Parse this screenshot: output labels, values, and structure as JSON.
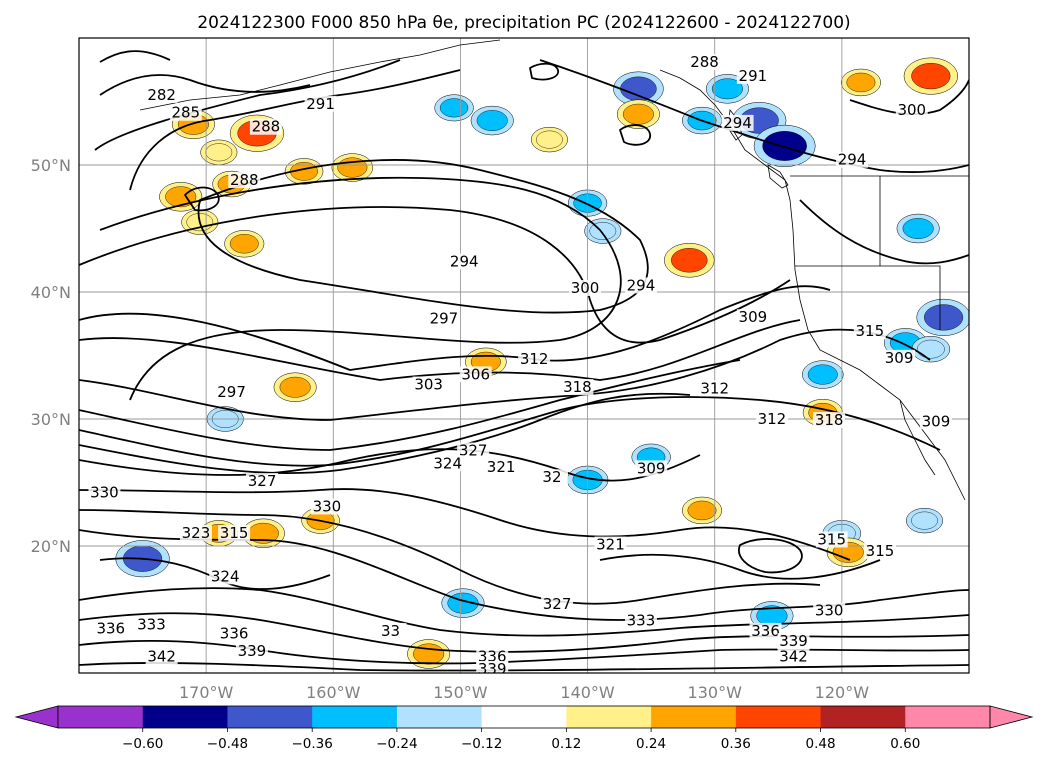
{
  "title": "2024122300 F000 850 hPa θe, precipitation PC (2024122600 - 2024122700)",
  "map": {
    "lon_ticks": [
      "170°W",
      "160°W",
      "150°W",
      "140°W",
      "130°W",
      "120°W"
    ],
    "lat_ticks": [
      "50°N",
      "40°N",
      "30°N",
      "20°N"
    ],
    "contour_labels": [
      {
        "text": "282",
        "lon": -173.5,
        "lat": 55.2
      },
      {
        "text": "285",
        "lon": -171.6,
        "lat": 53.8
      },
      {
        "text": "288",
        "lon": -165.3,
        "lat": 52.7
      },
      {
        "text": "288",
        "lon": -167.0,
        "lat": 48.5
      },
      {
        "text": "291",
        "lon": -161.0,
        "lat": 54.5
      },
      {
        "text": "288",
        "lon": -130.8,
        "lat": 57.8
      },
      {
        "text": "291",
        "lon": -127.0,
        "lat": 56.7
      },
      {
        "text": "294",
        "lon": -128.2,
        "lat": 53.0
      },
      {
        "text": "300",
        "lon": -114.5,
        "lat": 54.0
      },
      {
        "text": "294",
        "lon": -119.2,
        "lat": 50.1
      },
      {
        "text": "294",
        "lon": -149.7,
        "lat": 42.1
      },
      {
        "text": "300",
        "lon": -140.2,
        "lat": 40.0
      },
      {
        "text": "294",
        "lon": -135.8,
        "lat": 40.2
      },
      {
        "text": "297",
        "lon": -151.3,
        "lat": 37.6
      },
      {
        "text": "306",
        "lon": -148.8,
        "lat": 33.2
      },
      {
        "text": "303",
        "lon": -152.5,
        "lat": 32.4
      },
      {
        "text": "312",
        "lon": -144.2,
        "lat": 34.4
      },
      {
        "text": "318",
        "lon": -140.8,
        "lat": 32.2
      },
      {
        "text": "309",
        "lon": -127.0,
        "lat": 37.7
      },
      {
        "text": "315",
        "lon": -117.8,
        "lat": 36.6
      },
      {
        "text": "309",
        "lon": -115.5,
        "lat": 34.5
      },
      {
        "text": "312",
        "lon": -130.0,
        "lat": 32.1
      },
      {
        "text": "312",
        "lon": -125.5,
        "lat": 29.7
      },
      {
        "text": "318",
        "lon": -121.0,
        "lat": 29.6
      },
      {
        "text": "309",
        "lon": -112.6,
        "lat": 29.5
      },
      {
        "text": "297",
        "lon": -168.0,
        "lat": 31.8
      },
      {
        "text": "327",
        "lon": -149.0,
        "lat": 27.2
      },
      {
        "text": "324",
        "lon": -151.0,
        "lat": 26.2
      },
      {
        "text": "321",
        "lon": -146.8,
        "lat": 25.9
      },
      {
        "text": "32",
        "lon": -142.8,
        "lat": 25.1
      },
      {
        "text": "309",
        "lon": -135.0,
        "lat": 25.8
      },
      {
        "text": "327",
        "lon": -165.6,
        "lat": 24.8
      },
      {
        "text": "330",
        "lon": -178.0,
        "lat": 23.9
      },
      {
        "text": "330",
        "lon": -160.5,
        "lat": 22.8
      },
      {
        "text": "315",
        "lon": -167.8,
        "lat": 20.7
      },
      {
        "text": "323",
        "lon": -170.8,
        "lat": 20.7
      },
      {
        "text": "324",
        "lon": -168.5,
        "lat": 17.3
      },
      {
        "text": "321",
        "lon": -138.2,
        "lat": 19.8
      },
      {
        "text": "315",
        "lon": -120.8,
        "lat": 20.2
      },
      {
        "text": "315",
        "lon": -117.0,
        "lat": 19.3
      },
      {
        "text": "327",
        "lon": -142.4,
        "lat": 15.1
      },
      {
        "text": "333",
        "lon": -135.8,
        "lat": 13.8
      },
      {
        "text": "330",
        "lon": -121.0,
        "lat": 14.6
      },
      {
        "text": "336",
        "lon": -177.5,
        "lat": 13.2
      },
      {
        "text": "333",
        "lon": -174.3,
        "lat": 13.5
      },
      {
        "text": "336",
        "lon": -167.8,
        "lat": 12.8
      },
      {
        "text": "33",
        "lon": -155.5,
        "lat": 13.0
      },
      {
        "text": "336",
        "lon": -126.0,
        "lat": 13.0
      },
      {
        "text": "339",
        "lon": -166.4,
        "lat": 11.4
      },
      {
        "text": "342",
        "lon": -173.5,
        "lat": 11.0
      },
      {
        "text": "339",
        "lon": -123.8,
        "lat": 12.2
      },
      {
        "text": "342",
        "lon": -123.8,
        "lat": 11.0
      },
      {
        "text": "336",
        "lon": -147.5,
        "lat": 11.0
      },
      {
        "text": "339",
        "lon": -147.5,
        "lat": 10.0
      }
    ],
    "precip_blobs": [
      {
        "lon": -171.0,
        "lat": 53.2,
        "class": 0.3
      },
      {
        "lon": -166.0,
        "lat": 52.5,
        "class": 0.45
      },
      {
        "lon": -169.0,
        "lat": 51.0,
        "class": 0.22
      },
      {
        "lon": -172.0,
        "lat": 47.5,
        "class": 0.3
      },
      {
        "lon": -170.5,
        "lat": 45.5,
        "class": 0.22
      },
      {
        "lon": -167.0,
        "lat": 43.8,
        "class": 0.26
      },
      {
        "lon": -162.3,
        "lat": 49.5,
        "class": 0.24
      },
      {
        "lon": -158.5,
        "lat": 49.8,
        "class": 0.28
      },
      {
        "lon": -150.5,
        "lat": 54.5,
        "class": -0.25
      },
      {
        "lon": -147.5,
        "lat": 53.5,
        "class": -0.3
      },
      {
        "lon": -143.0,
        "lat": 52.0,
        "class": 0.22
      },
      {
        "lon": -168.0,
        "lat": 48.5,
        "class": 0.24
      },
      {
        "lon": -136.0,
        "lat": 56.0,
        "class": -0.4
      },
      {
        "lon": -129.0,
        "lat": 56.0,
        "class": -0.3
      },
      {
        "lon": -126.5,
        "lat": 53.5,
        "class": -0.45
      },
      {
        "lon": -124.5,
        "lat": 51.5,
        "class": -0.55
      },
      {
        "lon": -113.0,
        "lat": 57.0,
        "class": 0.45
      },
      {
        "lon": -118.5,
        "lat": 56.5,
        "class": 0.26
      },
      {
        "lon": -136.0,
        "lat": 54.0,
        "class": 0.3
      },
      {
        "lon": -131.0,
        "lat": 53.5,
        "class": -0.26
      },
      {
        "lon": -140.0,
        "lat": 47.0,
        "class": -0.25
      },
      {
        "lon": -138.8,
        "lat": 44.8,
        "class": -0.22
      },
      {
        "lon": -132.0,
        "lat": 42.5,
        "class": 0.4
      },
      {
        "lon": -112.0,
        "lat": 38.0,
        "class": -0.45
      },
      {
        "lon": -115.0,
        "lat": 36.0,
        "class": -0.3
      },
      {
        "lon": -121.5,
        "lat": 33.5,
        "class": -0.28
      },
      {
        "lon": -121.5,
        "lat": 30.5,
        "class": 0.26
      },
      {
        "lon": -113.0,
        "lat": 35.5,
        "class": -0.24
      },
      {
        "lon": -114.0,
        "lat": 45.0,
        "class": -0.3
      },
      {
        "lon": -148.0,
        "lat": 34.5,
        "class": 0.28
      },
      {
        "lon": -163.0,
        "lat": 32.5,
        "class": 0.3
      },
      {
        "lon": -168.5,
        "lat": 30.0,
        "class": -0.22
      },
      {
        "lon": -135.0,
        "lat": 27.0,
        "class": -0.25
      },
      {
        "lon": -140.0,
        "lat": 25.2,
        "class": -0.28
      },
      {
        "lon": -131.0,
        "lat": 22.8,
        "class": 0.26
      },
      {
        "lon": -165.5,
        "lat": 21.0,
        "class": 0.3
      },
      {
        "lon": -169.0,
        "lat": 21.0,
        "class": 0.24
      },
      {
        "lon": -161.0,
        "lat": 22.0,
        "class": 0.24
      },
      {
        "lon": -175.0,
        "lat": 19.0,
        "class": -0.45
      },
      {
        "lon": -149.8,
        "lat": 15.5,
        "class": -0.3
      },
      {
        "lon": -125.5,
        "lat": 14.5,
        "class": -0.3
      },
      {
        "lon": -152.5,
        "lat": 11.5,
        "class": 0.3
      },
      {
        "lon": -120.0,
        "lat": 21.0,
        "class": -0.24
      },
      {
        "lon": -119.5,
        "lat": 19.5,
        "class": 0.3
      },
      {
        "lon": -113.5,
        "lat": 22.0,
        "class": -0.22
      }
    ]
  },
  "colorbar": {
    "tick_labels": [
      "−0.60",
      "−0.48",
      "−0.36",
      "−0.24",
      "−0.12",
      "0.12",
      "0.24",
      "0.36",
      "0.48",
      "0.60"
    ],
    "colors": [
      "#9932cc",
      "#00008b",
      "#3e58cc",
      "#00bfff",
      "#b0e2ff",
      "#ffffff",
      "#fff08a",
      "#ffa500",
      "#ff4500",
      "#b22222",
      "#ff88aa",
      "#ff88aa"
    ]
  }
}
